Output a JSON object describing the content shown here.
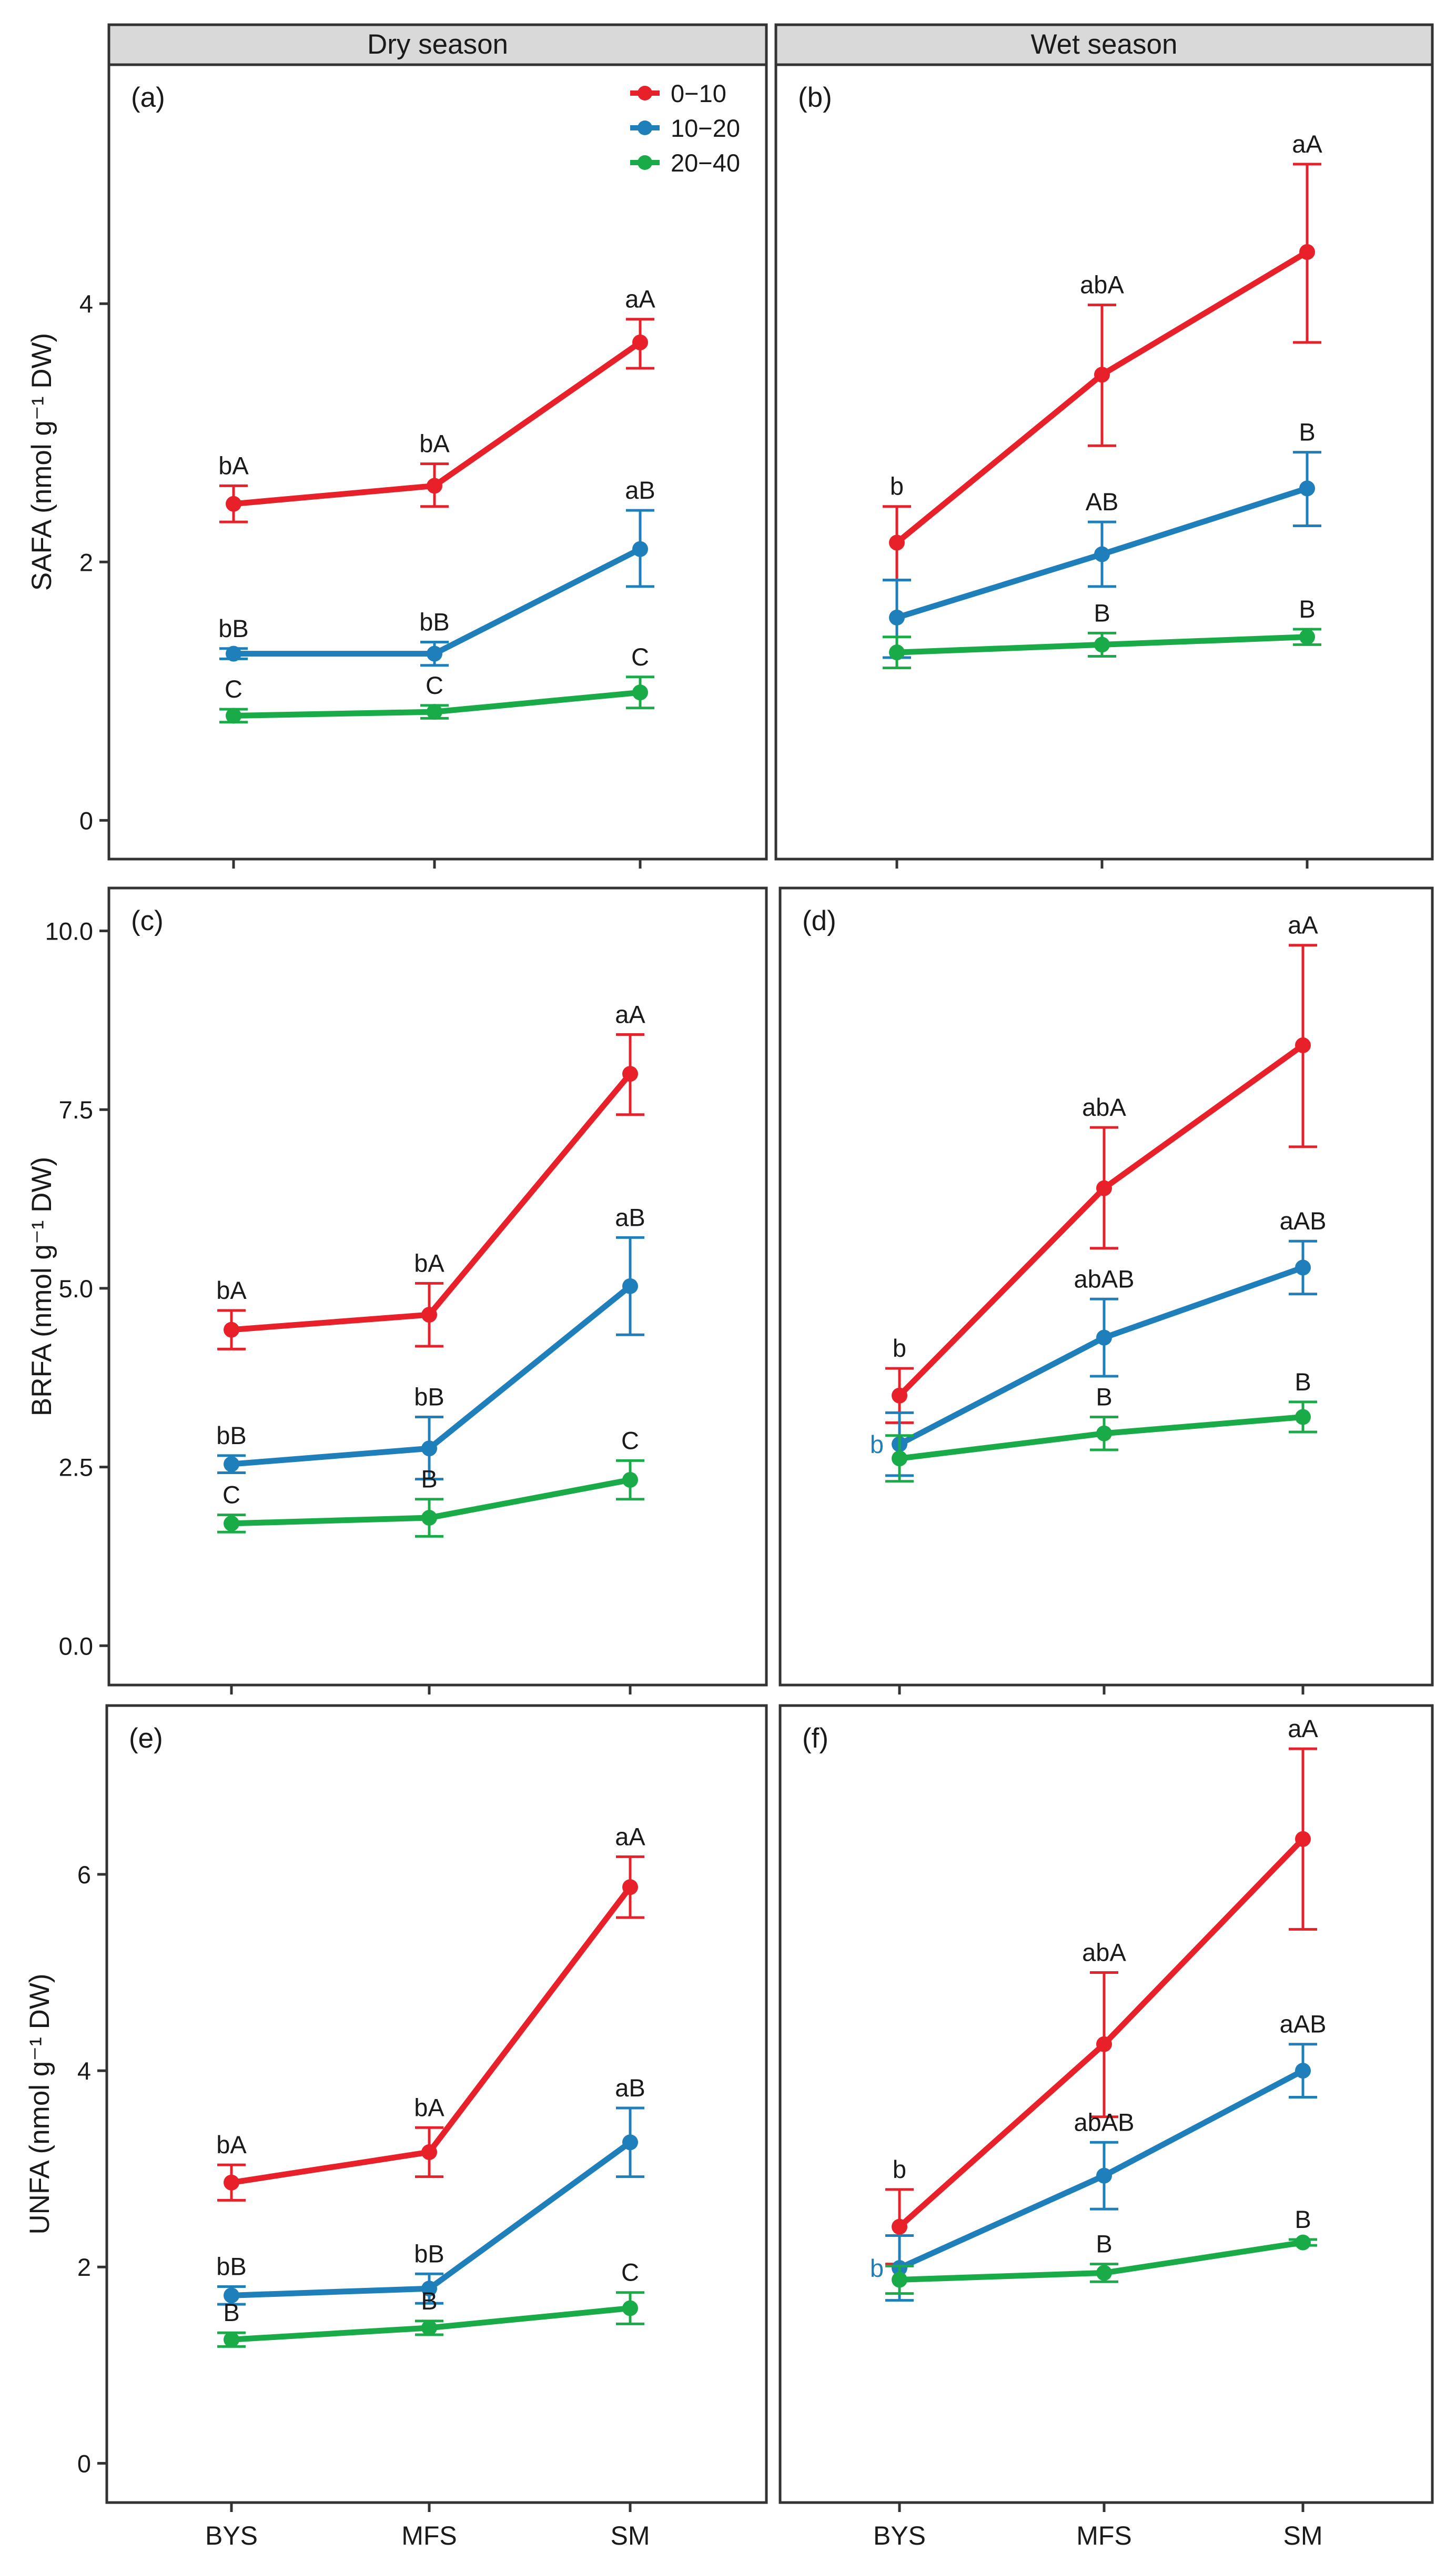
{
  "figure": {
    "col_headers": [
      "Dry season",
      "Wet season"
    ],
    "x_categories": [
      "BYS",
      "MFS",
      "SM"
    ],
    "legend": [
      {
        "name": "0-10",
        "label": "0−10",
        "color": "#e8202a"
      },
      {
        "name": "10-20",
        "label": "10−20",
        "color": "#1f7fba"
      },
      {
        "name": "20-40",
        "label": "20−40",
        "color": "#1aab49"
      }
    ]
  },
  "chart_data": [
    {
      "type": "line",
      "panel": "(a)",
      "season": "Dry season",
      "show_legend": true,
      "ylabel": "SAFA (nmol g⁻¹ DW)",
      "ylim": [
        -0.3,
        5.85
      ],
      "yticks": [
        "0",
        "2",
        "4"
      ],
      "ytick_values": [
        0,
        2,
        4
      ],
      "categories": [
        "BYS",
        "MFS",
        "SM"
      ],
      "series": [
        {
          "name": "0-10",
          "values": [
            2.45,
            2.59,
            3.7
          ],
          "lower": [
            2.31,
            2.43,
            3.5
          ],
          "upper": [
            2.59,
            2.76,
            3.88
          ],
          "labels": [
            "bA",
            "bA",
            "aA"
          ]
        },
        {
          "name": "10-20",
          "values": [
            1.29,
            1.29,
            2.1
          ],
          "lower": [
            1.25,
            1.2,
            1.81
          ],
          "upper": [
            1.33,
            1.38,
            2.4
          ],
          "labels": [
            "bB",
            "bB",
            "aB"
          ]
        },
        {
          "name": "20-40",
          "values": [
            0.81,
            0.84,
            0.99
          ],
          "lower": [
            0.76,
            0.79,
            0.87
          ],
          "upper": [
            0.86,
            0.89,
            1.11
          ],
          "labels": [
            "C",
            "C",
            "C"
          ]
        }
      ]
    },
    {
      "type": "line",
      "panel": "(b)",
      "season": "Wet season",
      "show_legend": false,
      "ylabel": "",
      "ylim": [
        -0.3,
        5.85
      ],
      "yticks": [],
      "ytick_values": [],
      "categories": [
        "BYS",
        "MFS",
        "SM"
      ],
      "series": [
        {
          "name": "0-10",
          "values": [
            2.15,
            3.45,
            4.4
          ],
          "lower": [
            1.86,
            2.9,
            3.7
          ],
          "upper": [
            2.43,
            3.99,
            5.08
          ],
          "labels": [
            "b",
            "abA",
            "aA"
          ]
        },
        {
          "name": "10-20",
          "values": [
            1.57,
            2.06,
            2.57
          ],
          "lower": [
            1.26,
            1.81,
            2.28
          ],
          "upper": [
            1.86,
            2.31,
            2.85
          ],
          "labels": [
            "",
            "AB",
            "B"
          ]
        },
        {
          "name": "20-40",
          "values": [
            1.3,
            1.36,
            1.42
          ],
          "lower": [
            1.18,
            1.27,
            1.36
          ],
          "upper": [
            1.42,
            1.45,
            1.48
          ],
          "labels": [
            "",
            "B",
            "B"
          ]
        }
      ]
    },
    {
      "type": "line",
      "panel": "(c)",
      "season": "Dry season",
      "show_legend": false,
      "ylabel": "BRFA (nmol g⁻¹ DW)",
      "ylim": [
        -0.55,
        10.6
      ],
      "yticks": [
        "0.0",
        "2.5",
        "5.0",
        "7.5",
        "10.0"
      ],
      "ytick_values": [
        0,
        2.5,
        5,
        7.5,
        10
      ],
      "categories": [
        "BYS",
        "MFS",
        "SM"
      ],
      "series": [
        {
          "name": "0-10",
          "values": [
            4.42,
            4.63,
            8.0
          ],
          "lower": [
            4.15,
            4.19,
            7.43
          ],
          "upper": [
            4.69,
            5.07,
            8.55
          ],
          "labels": [
            "bA",
            "bA",
            "aA"
          ]
        },
        {
          "name": "10-20",
          "values": [
            2.54,
            2.76,
            5.03
          ],
          "lower": [
            2.42,
            2.33,
            4.35
          ],
          "upper": [
            2.66,
            3.2,
            5.71
          ],
          "labels": [
            "bB",
            "bB",
            "aB"
          ]
        },
        {
          "name": "20-40",
          "values": [
            1.71,
            1.79,
            2.32
          ],
          "lower": [
            1.59,
            1.53,
            2.05
          ],
          "upper": [
            1.83,
            2.05,
            2.59
          ],
          "labels": [
            "C",
            "B",
            "C"
          ]
        }
      ]
    },
    {
      "type": "line",
      "panel": "(d)",
      "season": "Wet season",
      "show_legend": false,
      "ylabel": "",
      "ylim": [
        -0.55,
        10.6
      ],
      "yticks": [],
      "ytick_values": [],
      "categories": [
        "BYS",
        "MFS",
        "SM"
      ],
      "series": [
        {
          "name": "0-10",
          "values": [
            3.5,
            6.4,
            8.4
          ],
          "lower": [
            3.12,
            5.56,
            6.98
          ],
          "upper": [
            3.88,
            7.25,
            9.8
          ],
          "labels": [
            "b",
            "abA",
            "aA"
          ]
        },
        {
          "name": "10-20",
          "values": [
            2.82,
            4.31,
            5.29
          ],
          "lower": [
            2.38,
            3.77,
            4.92
          ],
          "upper": [
            3.26,
            4.85,
            5.66
          ],
          "labels": [
            "b",
            "abAB",
            "aAB"
          ]
        },
        {
          "name": "20-40",
          "values": [
            2.62,
            2.97,
            3.2
          ],
          "lower": [
            2.3,
            2.74,
            2.99
          ],
          "upper": [
            2.94,
            3.2,
            3.41
          ],
          "labels": [
            "",
            "B",
            "B"
          ]
        }
      ]
    },
    {
      "type": "line",
      "panel": "(e)",
      "season": "Dry season",
      "show_legend": false,
      "ylabel": "UNFA (nmol g⁻¹ DW)",
      "ylim": [
        -0.4,
        7.72
      ],
      "yticks": [
        "0",
        "2",
        "4",
        "6"
      ],
      "ytick_values": [
        0,
        2,
        4,
        6
      ],
      "categories": [
        "BYS",
        "MFS",
        "SM"
      ],
      "series": [
        {
          "name": "0-10",
          "values": [
            2.86,
            3.17,
            5.87
          ],
          "lower": [
            2.68,
            2.92,
            5.56
          ],
          "upper": [
            3.04,
            3.42,
            6.18
          ],
          "labels": [
            "bA",
            "bA",
            "aA"
          ]
        },
        {
          "name": "10-20",
          "values": [
            1.71,
            1.78,
            3.27
          ],
          "lower": [
            1.62,
            1.63,
            2.92
          ],
          "upper": [
            1.8,
            1.93,
            3.62
          ],
          "labels": [
            "bB",
            "bB",
            "aB"
          ]
        },
        {
          "name": "20-40",
          "values": [
            1.26,
            1.38,
            1.58
          ],
          "lower": [
            1.19,
            1.31,
            1.42
          ],
          "upper": [
            1.33,
            1.45,
            1.74
          ],
          "labels": [
            "B",
            "B",
            "C"
          ]
        }
      ]
    },
    {
      "type": "line",
      "panel": "(f)",
      "season": "Wet season",
      "show_legend": false,
      "ylabel": "",
      "ylim": [
        -0.4,
        7.72
      ],
      "yticks": [],
      "ytick_values": [],
      "categories": [
        "BYS",
        "MFS",
        "SM"
      ],
      "series": [
        {
          "name": "0-10",
          "values": [
            2.41,
            4.27,
            6.36
          ],
          "lower": [
            2.03,
            3.53,
            5.44
          ],
          "upper": [
            2.79,
            5.0,
            7.28
          ],
          "labels": [
            "b",
            "abA",
            "aA"
          ]
        },
        {
          "name": "10-20",
          "values": [
            1.99,
            2.93,
            4.0
          ],
          "lower": [
            1.66,
            2.59,
            3.73
          ],
          "upper": [
            2.32,
            3.27,
            4.27
          ],
          "labels": [
            "b",
            "abAB",
            "aAB"
          ]
        },
        {
          "name": "20-40",
          "values": [
            1.87,
            1.94,
            2.25
          ],
          "lower": [
            1.73,
            1.85,
            2.22
          ],
          "upper": [
            2.01,
            2.03,
            2.28
          ],
          "labels": [
            "",
            "B",
            "B"
          ]
        }
      ]
    }
  ]
}
